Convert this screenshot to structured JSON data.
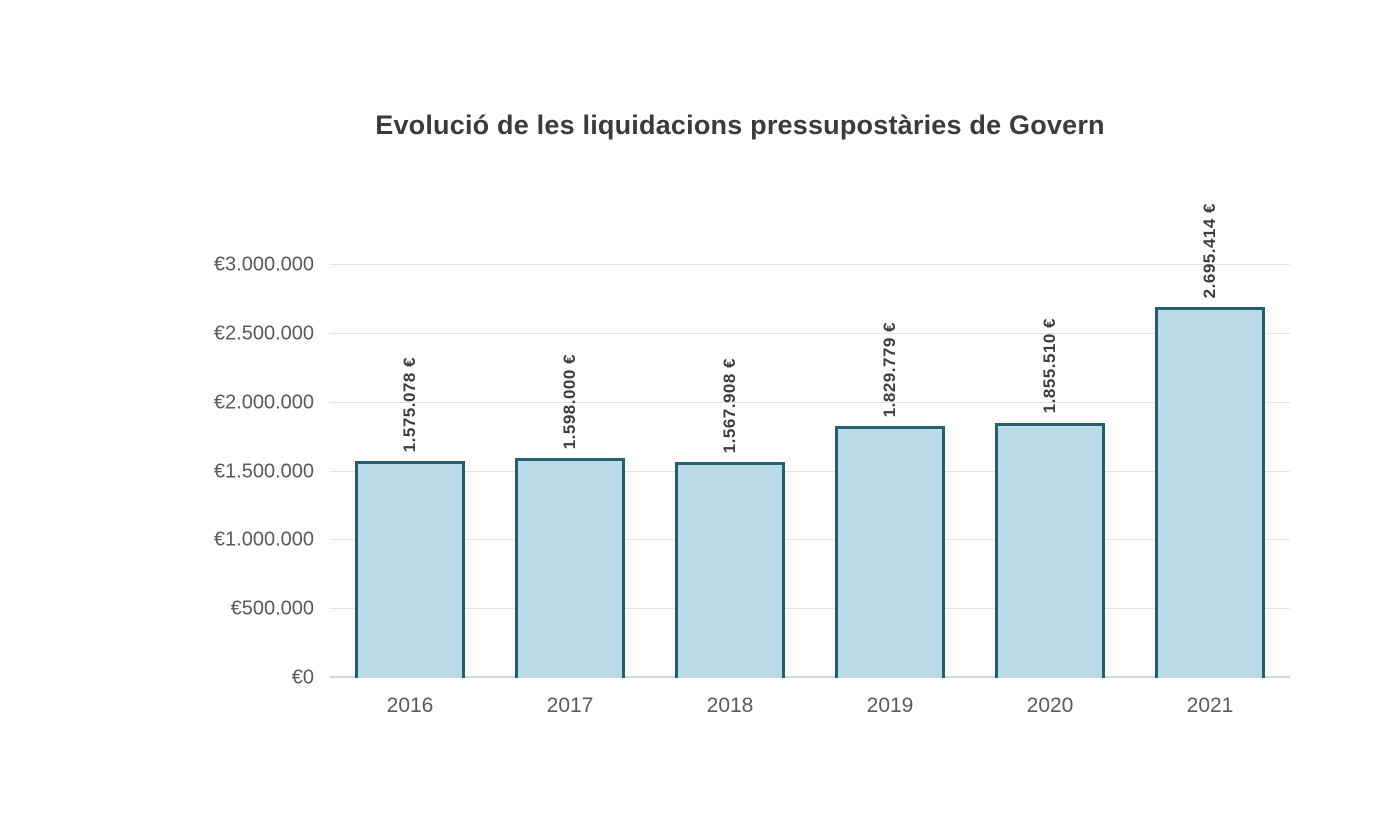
{
  "chart_data": {
    "type": "bar",
    "title": "Evolució de les liquidacions pressupostàries de Govern",
    "categories": [
      "2016",
      "2017",
      "2018",
      "2019",
      "2020",
      "2021"
    ],
    "values": [
      1575078,
      1598000,
      1567908,
      1829779,
      1855510,
      2695414
    ],
    "value_labels": [
      "1.575.078 €",
      "1.598.000 €",
      "1.567.908 €",
      "1.829.779 €",
      "1.855.510 €",
      "2.695.414 €"
    ],
    "xlabel": "",
    "ylabel": "",
    "ylim": [
      0,
      3000000
    ],
    "y_ticks": [
      0,
      500000,
      1000000,
      1500000,
      2000000,
      2500000,
      3000000
    ],
    "y_tick_labels": [
      "€0",
      "€500.000",
      "€1.000.000",
      "€1.500.000",
      "€2.000.000",
      "€2.500.000",
      "€3.000.000"
    ],
    "grid": true,
    "legend": "none",
    "colors": {
      "bar_fill": "#badbe6",
      "bar_border": "#265e72",
      "grid_line": "#e4e4e4",
      "baseline": "#d6d6d6",
      "axis_text": "#5a5a5a",
      "title_text": "#3b3b3b",
      "value_text": "#3d3d3d",
      "background": "#ffffff"
    }
  }
}
